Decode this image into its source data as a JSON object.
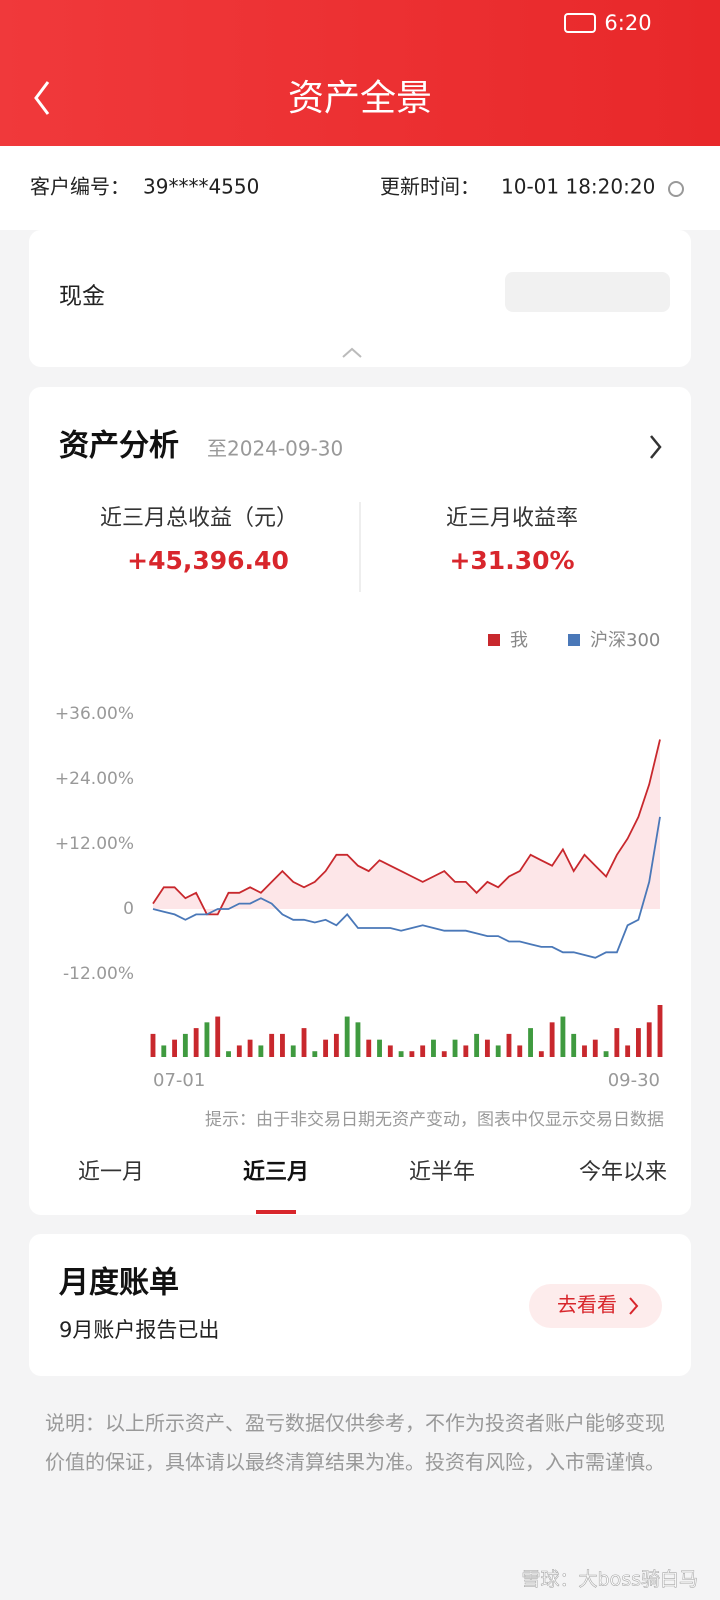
{
  "status_bar": {
    "time": "6:20"
  },
  "header": {
    "title": "资产全景"
  },
  "info": {
    "customer_label": "客户编号：",
    "customer_id": "39****4550",
    "update_label": "更新时间：",
    "update_time": "10-01 18:20:20"
  },
  "cash": {
    "label": "现金"
  },
  "analysis": {
    "title": "资产分析",
    "as_of": "至2024-09-30",
    "metrics": [
      {
        "label": "近三月总收益（元）",
        "value": "+45,396.40"
      },
      {
        "label": "近三月收益率",
        "value": "+31.30%"
      }
    ]
  },
  "chart_data": {
    "type": "line",
    "categories": [
      "07-01",
      null,
      null,
      null,
      null,
      null,
      null,
      null,
      null,
      null,
      null,
      null,
      null,
      null,
      null,
      null,
      null,
      null,
      null,
      null,
      null,
      null,
      null,
      null,
      null,
      null,
      null,
      null,
      null,
      null,
      null,
      null,
      null,
      null,
      null,
      null,
      null,
      null,
      null,
      null,
      null,
      null,
      null,
      null,
      null,
      null,
      null,
      "09-30"
    ],
    "series": [
      {
        "name": "我",
        "color": "#c8282d",
        "fill": "#fde6e8",
        "values": [
          1,
          4,
          4,
          2,
          3,
          -1,
          -1,
          3,
          3,
          4,
          3,
          5,
          7,
          5,
          4,
          5,
          7,
          10,
          10,
          8,
          7,
          9,
          8,
          7,
          6,
          5,
          6,
          7,
          5,
          5,
          3,
          5,
          4,
          6,
          7,
          10,
          9,
          8,
          11,
          7,
          10,
          8,
          6,
          10,
          13,
          17,
          23,
          31.3
        ]
      },
      {
        "name": "沪深300",
        "color": "#4a78b8",
        "values": [
          0,
          -0.5,
          -1,
          -2,
          -1,
          -1,
          0,
          0,
          1,
          1,
          2,
          1,
          -1,
          -2,
          -2,
          -2.5,
          -2,
          -3,
          -1,
          -3.5,
          -3.5,
          -3.5,
          -3.5,
          -4,
          -3.5,
          -3,
          -3.5,
          -4,
          -4,
          -4,
          -4.5,
          -5,
          -5,
          -6,
          -6,
          -6.5,
          -7,
          -7,
          -8,
          -8,
          -8.5,
          -9,
          -8,
          -8,
          -3,
          -2,
          5,
          17
        ]
      }
    ],
    "bars": {
      "up_color": "#c8282d",
      "down_color": "#3f9a3f",
      "values": [
        4,
        -2,
        3,
        -4,
        5,
        -6,
        7,
        -1,
        2,
        3,
        -2,
        4,
        4,
        -2,
        5,
        -1,
        3,
        4,
        -7,
        -6,
        3,
        -3,
        2,
        -1,
        1,
        2,
        -3,
        1,
        -3,
        2,
        -4,
        3,
        -2,
        4,
        2,
        -5,
        1,
        6,
        -7,
        -4,
        2,
        3,
        -1,
        5,
        2,
        5,
        6,
        9
      ]
    },
    "ylim": [
      -12,
      36
    ],
    "yticks": [
      {
        "value": -12,
        "label": "-12.00%"
      },
      0,
      {
        "value": 12,
        "label": "+12.00%"
      },
      {
        "value": 24,
        "label": "+24.00%"
      },
      {
        "value": 36,
        "label": "+36.00%"
      }
    ],
    "legend": "top-right",
    "note": "提示：由于非交易日期无资产变动，图表中仅显示交易日数据"
  },
  "tabs": {
    "items": [
      "近一月",
      "近三月",
      "近半年",
      "今年以来"
    ],
    "active": 1
  },
  "monthly": {
    "title": "月度账单",
    "subtitle": "9月账户报告已出",
    "button": "去看看"
  },
  "disclaimer": "说明：以上所示资产、盈亏数据仅供参考，不作为投资者账户能够变现价值的保证，具体请以最终清算结果为准。投资有风险，入市需谨慎。",
  "watermark": "雪球：大boss骑白马"
}
